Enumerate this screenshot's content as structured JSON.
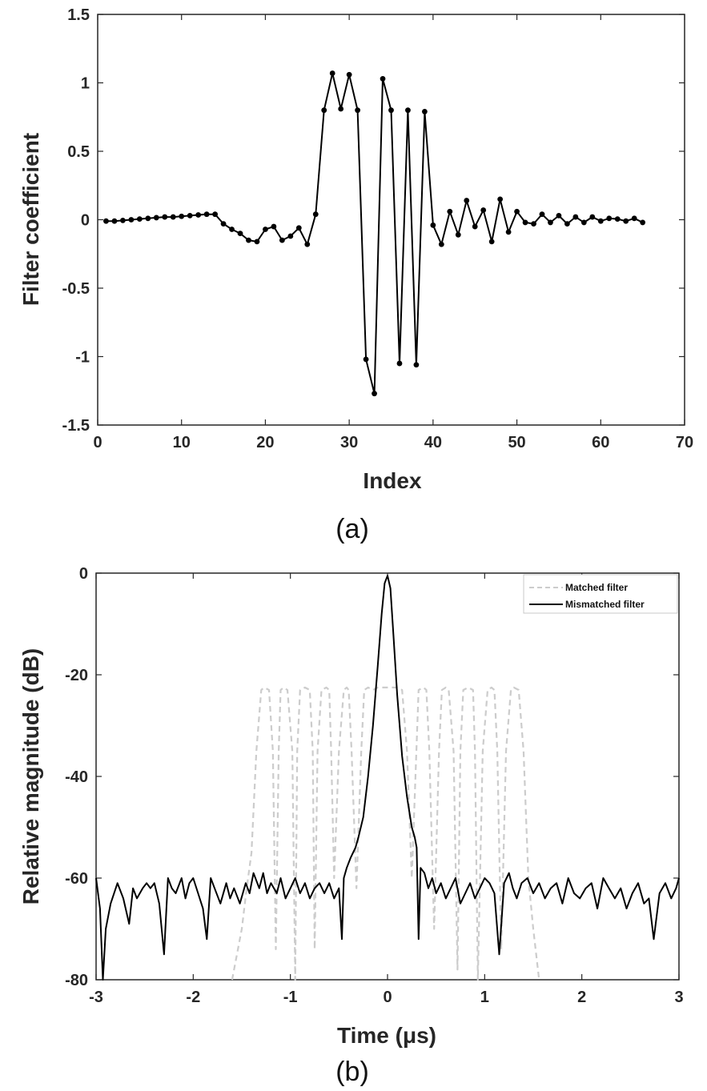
{
  "chart_data": [
    {
      "type": "line",
      "caption": "(a)",
      "xlabel": "Index",
      "ylabel": "Filter coefficient",
      "xlim": [
        0,
        70
      ],
      "ylim": [
        -1.5,
        1.5
      ],
      "x_ticks": [
        "0",
        "10",
        "20",
        "30",
        "40",
        "50",
        "60",
        "70"
      ],
      "y_ticks": [
        "-1.5",
        "-1",
        "-0.5",
        "0",
        "0.5",
        "1",
        "1.5"
      ],
      "grid": false,
      "series": [
        {
          "color": "#000000",
          "marker": "dot",
          "x": [
            1,
            2,
            3,
            4,
            5,
            6,
            7,
            8,
            9,
            10,
            11,
            12,
            13,
            14,
            15,
            16,
            17,
            18,
            19,
            20,
            21,
            22,
            23,
            24,
            25,
            26,
            27,
            28,
            29,
            30,
            31,
            32,
            33,
            34,
            35,
            36,
            37,
            38,
            39,
            40,
            41,
            42,
            43,
            44,
            45,
            46,
            47,
            48,
            49,
            50,
            51,
            52,
            53,
            54,
            55,
            56,
            57,
            58,
            59,
            60,
            61,
            62,
            63,
            64,
            65
          ],
          "values": [
            -0.01,
            -0.01,
            -0.005,
            0,
            0.005,
            0.01,
            0.015,
            0.02,
            0.02,
            0.025,
            0.03,
            0.035,
            0.04,
            0.04,
            -0.03,
            -0.07,
            -0.1,
            -0.15,
            -0.16,
            -0.07,
            -0.05,
            -0.15,
            -0.12,
            -0.06,
            -0.18,
            0.04,
            0.8,
            1.07,
            0.81,
            1.06,
            0.8,
            -1.02,
            -1.27,
            1.03,
            0.8,
            -1.05,
            0.8,
            -1.06,
            0.79,
            -0.04,
            -0.18,
            0.06,
            -0.11,
            0.14,
            -0.05,
            0.07,
            -0.16,
            0.15,
            -0.09,
            0.06,
            -0.02,
            -0.03,
            0.04,
            -0.02,
            0.03,
            -0.03,
            0.02,
            -0.02,
            0.02,
            -0.01,
            0.01,
            0.005,
            -0.01,
            0.01,
            -0.02
          ]
        }
      ]
    },
    {
      "type": "line",
      "caption": "(b)",
      "xlabel": "Time (μs)",
      "ylabel": "Relative magnitude (dB)",
      "xlim": [
        -3,
        3
      ],
      "ylim": [
        -80,
        0
      ],
      "x_ticks": [
        "-3",
        "-2",
        "-1",
        "0",
        "1",
        "2",
        "3"
      ],
      "y_ticks": [
        "-80",
        "-60",
        "-40",
        "-20",
        "0"
      ],
      "grid": false,
      "legend_position": "top-right",
      "series": [
        {
          "name": "Matched filter",
          "color": "#cccccc",
          "style": "dashed",
          "x": [
            -1.6,
            -1.5,
            -1.45,
            -1.4,
            -1.35,
            -1.3,
            -1.27,
            -1.22,
            -1.18,
            -1.15,
            -1.12,
            -1.1,
            -1.07,
            -1.03,
            -0.98,
            -0.95,
            -0.93,
            -0.9,
            -0.85,
            -0.8,
            -0.77,
            -0.75,
            -0.72,
            -0.68,
            -0.63,
            -0.6,
            -0.58,
            -0.55,
            -0.5,
            -0.45,
            -0.42,
            -0.4,
            -0.37,
            -0.32,
            -0.27,
            -0.24,
            -0.2,
            -0.15,
            -0.1,
            0.1,
            0.15,
            0.2,
            0.25,
            0.32,
            0.37,
            0.4,
            0.43,
            0.48,
            0.53,
            0.56,
            0.6,
            0.63,
            0.68,
            0.72,
            0.75,
            0.78,
            0.83,
            0.88,
            0.9,
            0.93,
            0.98,
            1.03,
            1.07,
            1.1,
            1.13,
            1.17,
            1.22,
            1.27,
            1.3,
            1.35,
            1.4,
            1.45,
            1.5,
            1.56
          ],
          "values": [
            -80,
            -70,
            -62,
            -55,
            -35,
            -23,
            -22.5,
            -23,
            -35,
            -74,
            -35,
            -23,
            -22.5,
            -23,
            -35,
            -80,
            -35,
            -23,
            -22.5,
            -23,
            -35,
            -74,
            -35,
            -23,
            -22.5,
            -23,
            -35,
            -60,
            -35,
            -23,
            -22.5,
            -23,
            -35,
            -62,
            -35,
            -23,
            -22.5,
            -23,
            -22.5,
            -22.5,
            -23,
            -35,
            -60,
            -23,
            -22.5,
            -23,
            -35,
            -70,
            -35,
            -23,
            -22.5,
            -23,
            -35,
            -78,
            -35,
            -23,
            -22.5,
            -23,
            -35,
            -80,
            -35,
            -23,
            -22.5,
            -23,
            -35,
            -74,
            -35,
            -23,
            -22.5,
            -23,
            -35,
            -60,
            -70,
            -80
          ]
        },
        {
          "name": "Mismatched filter",
          "color": "#000000",
          "style": "solid",
          "x": [
            -3,
            -2.96,
            -2.93,
            -2.9,
            -2.85,
            -2.78,
            -2.72,
            -2.66,
            -2.62,
            -2.58,
            -2.52,
            -2.48,
            -2.44,
            -2.4,
            -2.35,
            -2.3,
            -2.26,
            -2.22,
            -2.18,
            -2.12,
            -2.08,
            -2.04,
            -2,
            -1.95,
            -1.9,
            -1.86,
            -1.82,
            -1.78,
            -1.72,
            -1.66,
            -1.62,
            -1.58,
            -1.52,
            -1.46,
            -1.42,
            -1.38,
            -1.32,
            -1.28,
            -1.24,
            -1.2,
            -1.14,
            -1.1,
            -1.05,
            -1.0,
            -0.95,
            -0.9,
            -0.85,
            -0.8,
            -0.75,
            -0.7,
            -0.65,
            -0.6,
            -0.55,
            -0.5,
            -0.47,
            -0.45,
            -0.42,
            -0.38,
            -0.33,
            -0.3,
            -0.25,
            -0.2,
            -0.15,
            -0.1,
            -0.06,
            -0.03,
            0,
            0.03,
            0.06,
            0.1,
            0.15,
            0.2,
            0.25,
            0.28,
            0.3,
            0.32,
            0.34,
            0.38,
            0.42,
            0.46,
            0.5,
            0.55,
            0.6,
            0.65,
            0.7,
            0.75,
            0.8,
            0.85,
            0.9,
            0.95,
            1.0,
            1.05,
            1.1,
            1.15,
            1.2,
            1.25,
            1.29,
            1.33,
            1.38,
            1.44,
            1.5,
            1.56,
            1.62,
            1.68,
            1.74,
            1.8,
            1.86,
            1.92,
            1.98,
            2.04,
            2.1,
            2.16,
            2.22,
            2.28,
            2.34,
            2.4,
            2.46,
            2.52,
            2.58,
            2.64,
            2.69,
            2.74,
            2.8,
            2.86,
            2.92,
            2.97,
            3
          ],
          "values": [
            -60,
            -66,
            -80,
            -70,
            -65,
            -61,
            -64,
            -69,
            -62,
            -64,
            -62,
            -61,
            -62,
            -61,
            -65,
            -75,
            -60,
            -62,
            -63,
            -60,
            -64,
            -61,
            -60,
            -63,
            -66,
            -72,
            -60,
            -62,
            -65,
            -61,
            -64,
            -62,
            -65,
            -61,
            -63,
            -59,
            -62,
            -59,
            -63,
            -61,
            -63,
            -60,
            -64,
            -62,
            -60,
            -63,
            -61,
            -64,
            -62,
            -61,
            -63,
            -61,
            -64,
            -62,
            -72,
            -60,
            -58,
            -56,
            -54,
            -52,
            -48,
            -40,
            -30,
            -18,
            -8,
            -2,
            -0.5,
            -3,
            -12,
            -24,
            -36,
            -44,
            -50,
            -52,
            -54,
            -72,
            -58,
            -59,
            -62,
            -60,
            -63,
            -61,
            -64,
            -62,
            -60,
            -65,
            -63,
            -61,
            -64,
            -62,
            -60,
            -61,
            -63,
            -75,
            -61,
            -59,
            -62,
            -64,
            -61,
            -60,
            -63,
            -61,
            -64,
            -62,
            -61,
            -65,
            -60,
            -63,
            -64,
            -62,
            -61,
            -66,
            -60,
            -62,
            -64,
            -62,
            -66,
            -63,
            -61,
            -65,
            -64,
            -72,
            -63,
            -61,
            -64,
            -62,
            -60
          ]
        }
      ]
    }
  ]
}
